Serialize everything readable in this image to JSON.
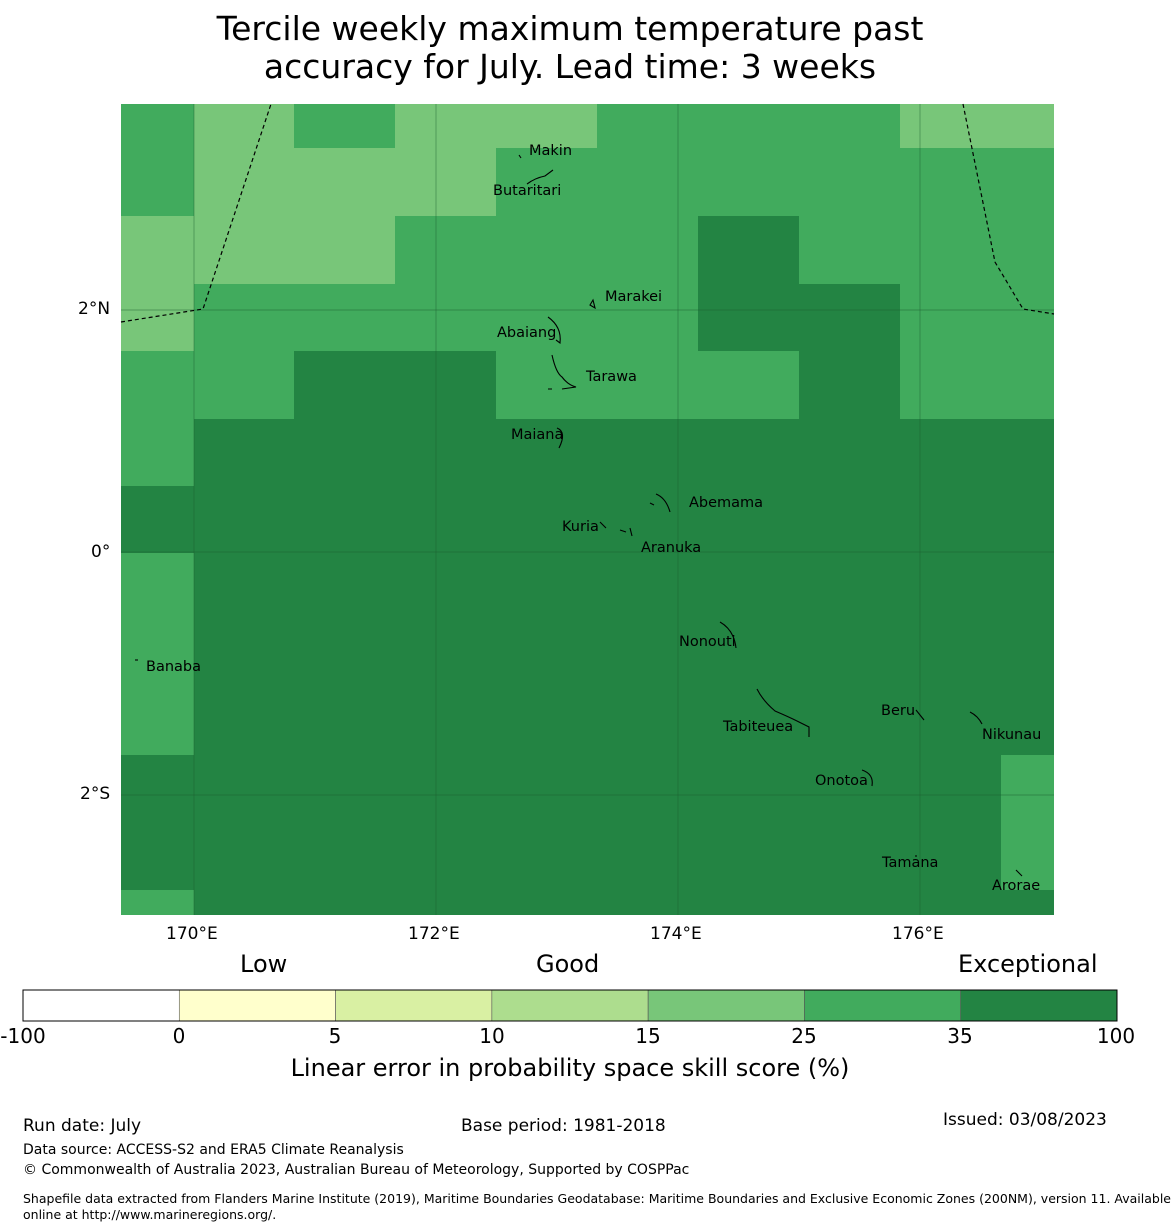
{
  "title_line1": "Tercile weekly maximum temperature past",
  "title_line2": "accuracy for July. Lead time: 3 weeks",
  "axes": {
    "lon_labels": [
      "170°E",
      "172°E",
      "174°E",
      "176°E"
    ],
    "lat_labels": [
      "2°N",
      "0°",
      "2°S"
    ]
  },
  "places": [
    {
      "name": "Makin"
    },
    {
      "name": "Butaritari"
    },
    {
      "name": "Marakei"
    },
    {
      "name": "Abaiang"
    },
    {
      "name": "Tarawa"
    },
    {
      "name": "Maiana"
    },
    {
      "name": "Abemama"
    },
    {
      "name": "Kuria"
    },
    {
      "name": "Aranuka"
    },
    {
      "name": "Nonouti"
    },
    {
      "name": "Banaba"
    },
    {
      "name": "Beru"
    },
    {
      "name": "Tabiteuea"
    },
    {
      "name": "Nikunau"
    },
    {
      "name": "Onotoa"
    },
    {
      "name": "Tamana"
    },
    {
      "name": "Arorae"
    }
  ],
  "colorbar": {
    "headings": [
      "Low",
      "Good",
      "Exceptional"
    ],
    "ticks": [
      "-100",
      "0",
      "5",
      "10",
      "15",
      "25",
      "35",
      "100"
    ],
    "colors": [
      "#ffffff",
      "#ffffcc",
      "#d9f0a3",
      "#addd8e",
      "#78c679",
      "#41ab5d",
      "#238443"
    ],
    "label": "Linear error in probability space skill score (%)"
  },
  "footer": {
    "run_date": "Run date: July",
    "base_period": "Base period: 1981-2018",
    "issued": "Issued: 03/08/2023",
    "data_source": "Data source: ACCESS-S2 and ERA5 Climate Reanalysis",
    "copyright": "© Commonwealth of Australia 2023, Australian Bureau of Meteorology, Supported by COSPPac",
    "shapefile1": "Shapefile data extracted from Flanders Marine Institute (2019), Maritime Boundaries Geodatabase: Maritime Boundaries and Exclusive Economic Zones (200NM), version 11. Available",
    "shapefile2": "online at http://www.marineregions.org/."
  }
}
